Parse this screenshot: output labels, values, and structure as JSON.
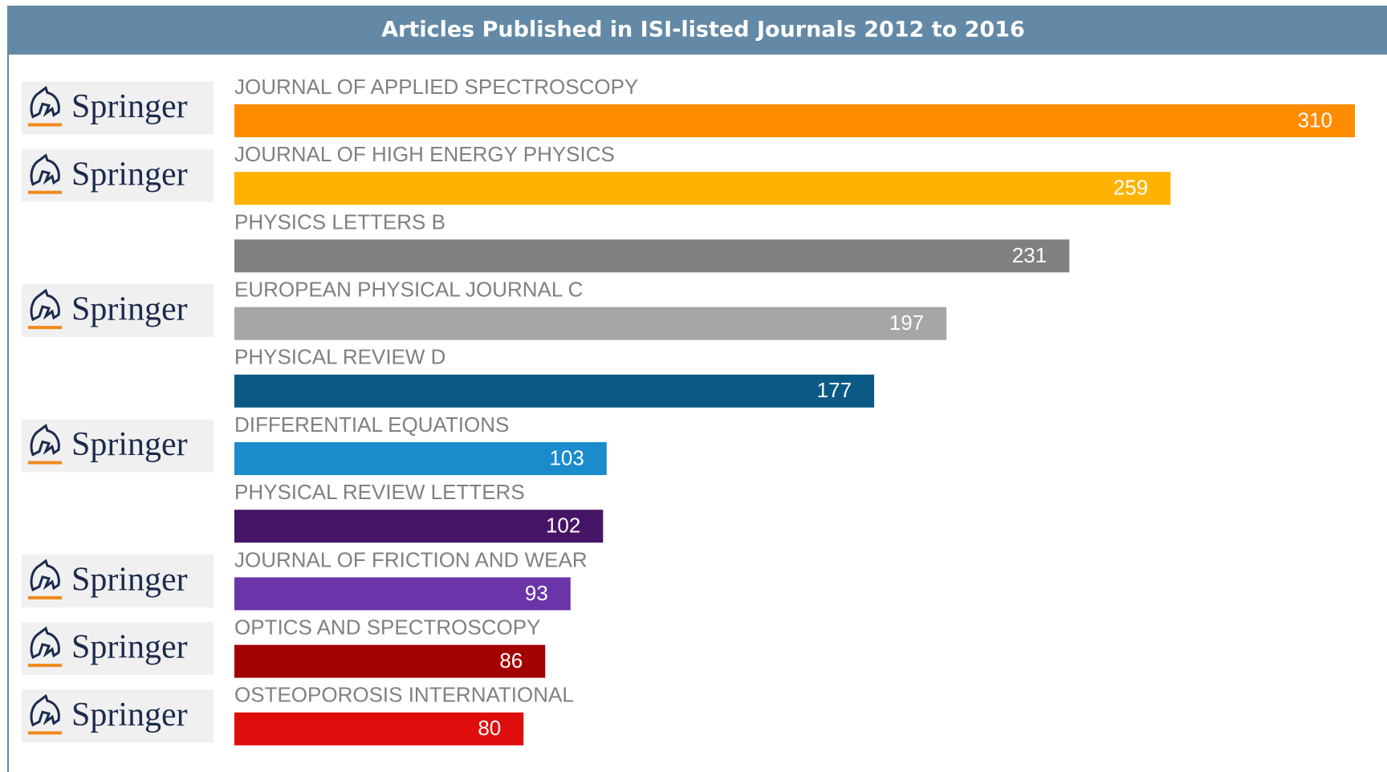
{
  "chart_data": {
    "type": "bar",
    "orientation": "horizontal",
    "title": "Articles Published in ISI-listed Journals 2012 to 2016",
    "categories": [
      "JOURNAL OF APPLIED SPECTROSCOPY",
      "JOURNAL OF HIGH ENERGY PHYSICS",
      "PHYSICS LETTERS B",
      "EUROPEAN PHYSICAL JOURNAL C",
      "PHYSICAL REVIEW D",
      "DIFFERENTIAL EQUATIONS",
      "PHYSICAL REVIEW LETTERS",
      "JOURNAL OF FRICTION AND WEAR",
      "OPTICS AND SPECTROSCOPY",
      "OSTEOPOROSIS INTERNATIONAL"
    ],
    "values": [
      310,
      259,
      231,
      197,
      177,
      103,
      102,
      93,
      86,
      80
    ],
    "colors": [
      "#ff8c00",
      "#ffb300",
      "#808080",
      "#a6a6a6",
      "#0b5a85",
      "#1a8ccc",
      "#461466",
      "#6a35a8",
      "#a30000",
      "#e00d0d"
    ],
    "publishers": [
      "Springer",
      "Springer",
      null,
      "Springer",
      null,
      "Springer",
      null,
      "Springer",
      "Springer",
      "Springer"
    ]
  }
}
